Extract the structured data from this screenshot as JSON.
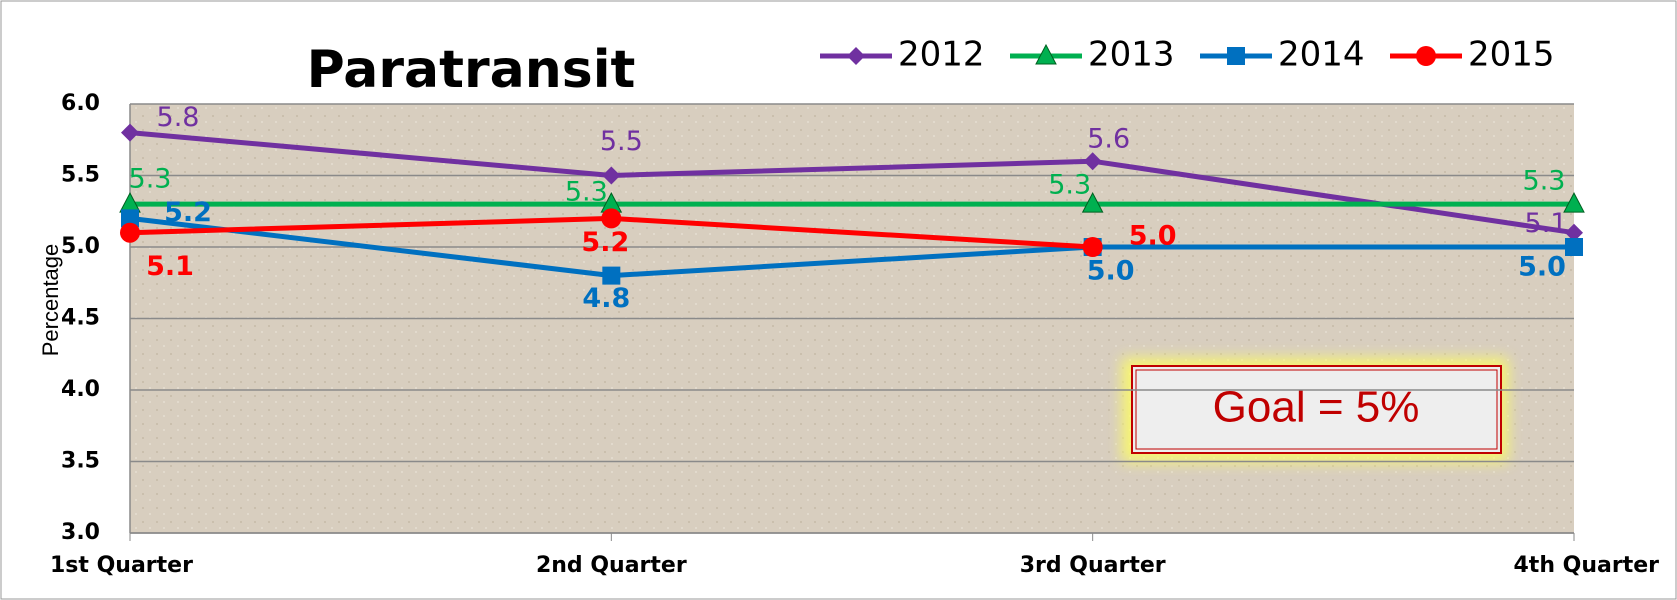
{
  "chart_data": {
    "type": "line",
    "title": "Paratransit",
    "y_label": "Percentage",
    "categories": [
      "1st Quarter",
      "2nd Quarter",
      "3rd Quarter",
      "4th Quarter"
    ],
    "series": [
      {
        "name": "2012",
        "color": "#7030a0",
        "values": [
          5.8,
          5.5,
          5.6,
          5.1
        ]
      },
      {
        "name": "2013",
        "color": "#00b050",
        "values": [
          5.3,
          5.3,
          5.3,
          5.3
        ]
      },
      {
        "name": "2014",
        "color": "#0070c0",
        "values": [
          5.2,
          4.8,
          5.0,
          5.0
        ],
        "value_labels": [
          "5.2",
          "4.8",
          "5.0",
          "5.0"
        ]
      },
      {
        "name": "2015",
        "color": "#ff0000",
        "values": [
          5.1,
          5.2,
          5.0,
          null
        ],
        "value_labels": [
          "5.1",
          "5.2",
          "5.0",
          null
        ]
      }
    ],
    "ylim": [
      3,
      6
    ],
    "yticks": [
      {
        "value": 3,
        "label": "3.0"
      },
      {
        "value": 3.5,
        "label": "3.5"
      },
      {
        "value": 4,
        "label": "4.0"
      },
      {
        "value": 4.5,
        "label": "4.5"
      },
      {
        "value": 5,
        "label": "5.0"
      },
      {
        "value": 5.5,
        "label": "5.5"
      },
      {
        "value": 6,
        "label": "6.0"
      }
    ],
    "grid": true,
    "legend": "top-right",
    "annotation": "Goal = 5%"
  }
}
